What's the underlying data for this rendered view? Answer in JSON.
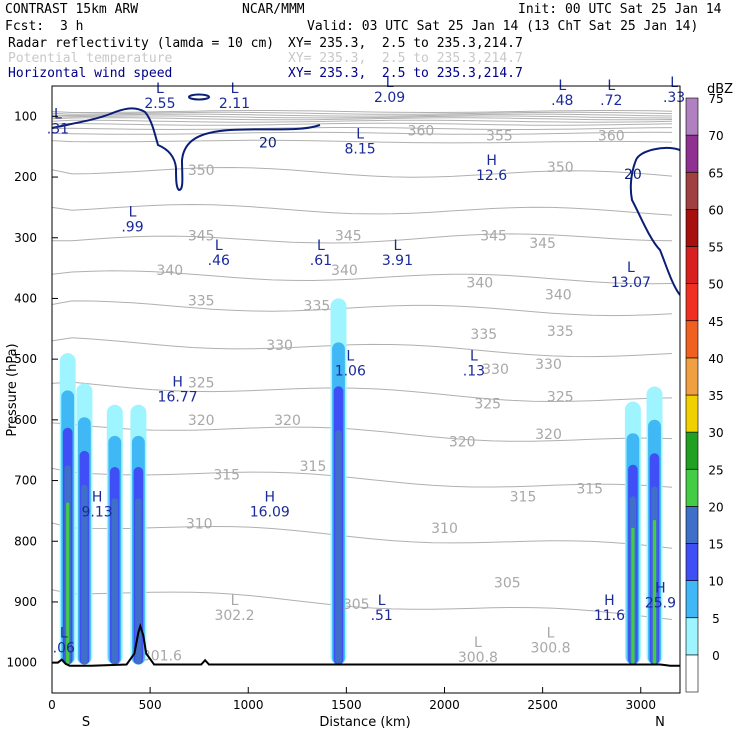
{
  "header": {
    "model": "CONTRAST 15km ARW",
    "org": "NCAR/MMM",
    "init": "Init: 00 UTC Sat 25 Jan 14",
    "fcst_label": "Fcst:",
    "fcst_value": "3 h",
    "valid": "Valid: 03 UTC Sat 25 Jan 14 (13 ChT Sat 25 Jan 14)",
    "fields": [
      {
        "name": "Radar reflectivity (lamda = 10 cm)",
        "xy": "XY= 235.3,  2.5 to 235.3,214.7",
        "color": "#000000"
      },
      {
        "name": "Potential temperature",
        "xy": "XY= 235.3,  2.5 to 235.3,214.7",
        "color": "#c8c8c8"
      },
      {
        "name": "Horizontal wind speed",
        "xy": "XY= 235.3,  2.5 to 235.3,214.7",
        "color": "#00008b"
      }
    ]
  },
  "chart_data": {
    "type": "heatmap",
    "title": "CONTRAST 15km ARW cross-section",
    "xlabel": "Distance (km)",
    "ylabel": "Pressure (hPa)",
    "x_range": [
      0,
      3200
    ],
    "y_range": [
      1050,
      50
    ],
    "x_ticks": [
      0,
      500,
      1000,
      1500,
      2000,
      2500,
      3000
    ],
    "y_ticks": [
      100,
      200,
      300,
      400,
      500,
      600,
      700,
      800,
      900,
      1000
    ],
    "end_labels": {
      "left": "S",
      "right": "N"
    },
    "colorbar": {
      "unit": "dBZ",
      "levels": [
        0,
        5,
        10,
        15,
        20,
        25,
        30,
        35,
        40,
        45,
        50,
        55,
        60,
        65,
        70,
        75
      ],
      "colors": [
        "#ffffff",
        "#9ff5ff",
        "#3fb8f5",
        "#3f4ff5",
        "#3f6fc8",
        "#44cc44",
        "#22a022",
        "#f0d000",
        "#f0a040",
        "#f06020",
        "#f03020",
        "#d82020",
        "#a81010",
        "#a04040",
        "#903090",
        "#b080c0"
      ]
    },
    "reflectivity_columns": [
      {
        "x_km": 80,
        "top_hPa": 490,
        "max_dBZ": 30
      },
      {
        "x_km": 165,
        "top_hPa": 540,
        "max_dBZ": 20
      },
      {
        "x_km": 320,
        "top_hPa": 575,
        "max_dBZ": 20
      },
      {
        "x_km": 440,
        "top_hPa": 575,
        "max_dBZ": 20
      },
      {
        "x_km": 1460,
        "top_hPa": 400,
        "max_dBZ": 20
      },
      {
        "x_km": 2960,
        "top_hPa": 570,
        "max_dBZ": 30
      },
      {
        "x_km": 3070,
        "top_hPa": 545,
        "max_dBZ": 30
      }
    ],
    "theta_labels": [
      {
        "text": "360",
        "x_km": 1880,
        "p_hPa": 125
      },
      {
        "text": "355",
        "x_km": 2280,
        "p_hPa": 133
      },
      {
        "text": "360",
        "x_km": 2850,
        "p_hPa": 133
      },
      {
        "text": "350",
        "x_km": 760,
        "p_hPa": 190
      },
      {
        "text": "350",
        "x_km": 2590,
        "p_hPa": 185
      },
      {
        "text": "345",
        "x_km": 760,
        "p_hPa": 298
      },
      {
        "text": "345",
        "x_km": 1510,
        "p_hPa": 298
      },
      {
        "text": "345",
        "x_km": 2250,
        "p_hPa": 298
      },
      {
        "text": "345",
        "x_km": 2500,
        "p_hPa": 310
      },
      {
        "text": "340",
        "x_km": 600,
        "p_hPa": 355
      },
      {
        "text": "340",
        "x_km": 1490,
        "p_hPa": 355
      },
      {
        "text": "340",
        "x_km": 2180,
        "p_hPa": 375
      },
      {
        "text": "340",
        "x_km": 2580,
        "p_hPa": 395
      },
      {
        "text": "335",
        "x_km": 760,
        "p_hPa": 405
      },
      {
        "text": "335",
        "x_km": 1350,
        "p_hPa": 413
      },
      {
        "text": "335",
        "x_km": 2200,
        "p_hPa": 460
      },
      {
        "text": "335",
        "x_km": 2590,
        "p_hPa": 455
      },
      {
        "text": "330",
        "x_km": 1160,
        "p_hPa": 478
      },
      {
        "text": "330",
        "x_km": 2260,
        "p_hPa": 518
      },
      {
        "text": "330",
        "x_km": 2530,
        "p_hPa": 510
      },
      {
        "text": "325",
        "x_km": 760,
        "p_hPa": 540
      },
      {
        "text": "325",
        "x_km": 2220,
        "p_hPa": 575
      },
      {
        "text": "325",
        "x_km": 2590,
        "p_hPa": 563
      },
      {
        "text": "320",
        "x_km": 760,
        "p_hPa": 602
      },
      {
        "text": "320",
        "x_km": 1200,
        "p_hPa": 602
      },
      {
        "text": "320",
        "x_km": 2090,
        "p_hPa": 637
      },
      {
        "text": "320",
        "x_km": 2530,
        "p_hPa": 625
      },
      {
        "text": "315",
        "x_km": 890,
        "p_hPa": 692
      },
      {
        "text": "315",
        "x_km": 1330,
        "p_hPa": 678
      },
      {
        "text": "315",
        "x_km": 2400,
        "p_hPa": 728
      },
      {
        "text": "315",
        "x_km": 2740,
        "p_hPa": 715
      },
      {
        "text": "310",
        "x_km": 750,
        "p_hPa": 772
      },
      {
        "text": "310",
        "x_km": 2000,
        "p_hPa": 780
      },
      {
        "text": "305",
        "x_km": 1550,
        "p_hPa": 905
      },
      {
        "text": "305",
        "x_km": 2320,
        "p_hPa": 870
      }
    ],
    "wind_labels": [
      {
        "text": "20",
        "x_km": 1100,
        "p_hPa": 145
      },
      {
        "text": "20",
        "x_km": 2960,
        "p_hPa": 197
      }
    ],
    "extrema": [
      {
        "type": "L",
        "value": ".31",
        "x_km": 30,
        "p_hPa": 117
      },
      {
        "type": "L",
        "value": "2.55",
        "x_km": 550,
        "p_hPa": 75
      },
      {
        "type": "L",
        "value": "2.11",
        "x_km": 930,
        "p_hPa": 75
      },
      {
        "type": "L",
        "value": "2.09",
        "x_km": 1720,
        "p_hPa": 65
      },
      {
        "type": "L",
        "value": ".48",
        "x_km": 2600,
        "p_hPa": 70
      },
      {
        "type": "L",
        "value": ".72",
        "x_km": 2850,
        "p_hPa": 70
      },
      {
        "type": "L",
        "value": ".33",
        "x_km": 3170,
        "p_hPa": 65
      },
      {
        "type": "L",
        "value": "8.15",
        "x_km": 1570,
        "p_hPa": 150
      },
      {
        "type": "H",
        "value": "12.6",
        "x_km": 2240,
        "p_hPa": 193
      },
      {
        "type": "L",
        "value": ".99",
        "x_km": 410,
        "p_hPa": 278
      },
      {
        "type": "L",
        "value": ".46",
        "x_km": 850,
        "p_hPa": 333
      },
      {
        "type": "L",
        "value": ".61",
        "x_km": 1370,
        "p_hPa": 333
      },
      {
        "type": "L",
        "value": "3.91",
        "x_km": 1760,
        "p_hPa": 333
      },
      {
        "type": "L",
        "value": "13.07",
        "x_km": 2950,
        "p_hPa": 370
      },
      {
        "type": "L",
        "value": "1.06",
        "x_km": 1520,
        "p_hPa": 515
      },
      {
        "type": "L",
        "value": ".13",
        "x_km": 2150,
        "p_hPa": 515
      },
      {
        "type": "H",
        "value": "16.77",
        "x_km": 640,
        "p_hPa": 558
      },
      {
        "type": "H",
        "value": "9.13",
        "x_km": 230,
        "p_hPa": 748
      },
      {
        "type": "H",
        "value": "16.09",
        "x_km": 1110,
        "p_hPa": 748
      },
      {
        "type": "L",
        "value": "302.2",
        "x_km": 930,
        "p_hPa": 918
      },
      {
        "type": "L",
        "value": ".51",
        "x_km": 1680,
        "p_hPa": 918
      },
      {
        "type": "H",
        "value": "11.6",
        "x_km": 2840,
        "p_hPa": 918
      },
      {
        "type": "H",
        "value": "25.9",
        "x_km": 3100,
        "p_hPa": 898
      },
      {
        "type": "L",
        "value": ".06",
        "x_km": 60,
        "p_hPa": 972
      },
      {
        "type": "L",
        "value": "300.8",
        "x_km": 2170,
        "p_hPa": 987
      },
      {
        "type": "L",
        "value": "300.8",
        "x_km": 2540,
        "p_hPa": 972
      }
    ],
    "edge_label": {
      "text": "301.6",
      "x_km": 560,
      "p_hPa": 990
    },
    "terrain": [
      [
        0,
        1000
      ],
      [
        30,
        1000
      ],
      [
        50,
        995
      ],
      [
        70,
        1002
      ],
      [
        90,
        1005
      ],
      [
        200,
        1005
      ],
      [
        380,
        1003
      ],
      [
        420,
        985
      ],
      [
        440,
        950
      ],
      [
        450,
        940
      ],
      [
        465,
        955
      ],
      [
        480,
        985
      ],
      [
        520,
        1003
      ],
      [
        760,
        1003
      ],
      [
        780,
        996
      ],
      [
        800,
        1003
      ],
      [
        3100,
        1003
      ],
      [
        3150,
        1005
      ],
      [
        3200,
        1005
      ]
    ]
  }
}
